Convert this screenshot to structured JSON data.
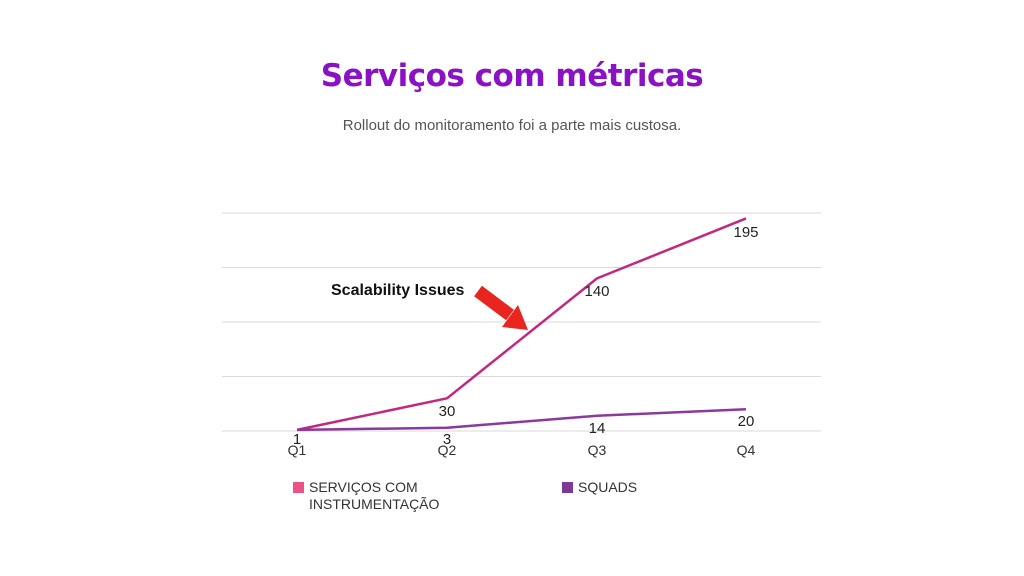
{
  "colors": {
    "title": "#8a12c4",
    "series1_line": "#c2287e",
    "series1_swatch": "#ee5087",
    "series2_line": "#8a3a9c",
    "series2_swatch": "#7b3a94",
    "grid": "#d9d9d9",
    "annotation_arrow": "#e8261f"
  },
  "slide": {
    "title": "Serviços com métricas",
    "subtitle": "Rollout do monitoramento foi a parte mais custosa."
  },
  "annotation": {
    "text": "Scalability Issues",
    "icon": "red-arrow-icon"
  },
  "chart_data": {
    "type": "line",
    "categories": [
      "Q1",
      "Q2",
      "Q3",
      "Q4"
    ],
    "series": [
      {
        "name": "SERVIÇOS COM\nINSTRUMENTAÇÃO",
        "values": [
          1,
          30,
          140,
          195
        ]
      },
      {
        "name": "SQUADS",
        "values": [
          1,
          3,
          14,
          20
        ]
      }
    ],
    "ylim": [
      0,
      200
    ],
    "grid": true,
    "legend_position": "bottom"
  }
}
